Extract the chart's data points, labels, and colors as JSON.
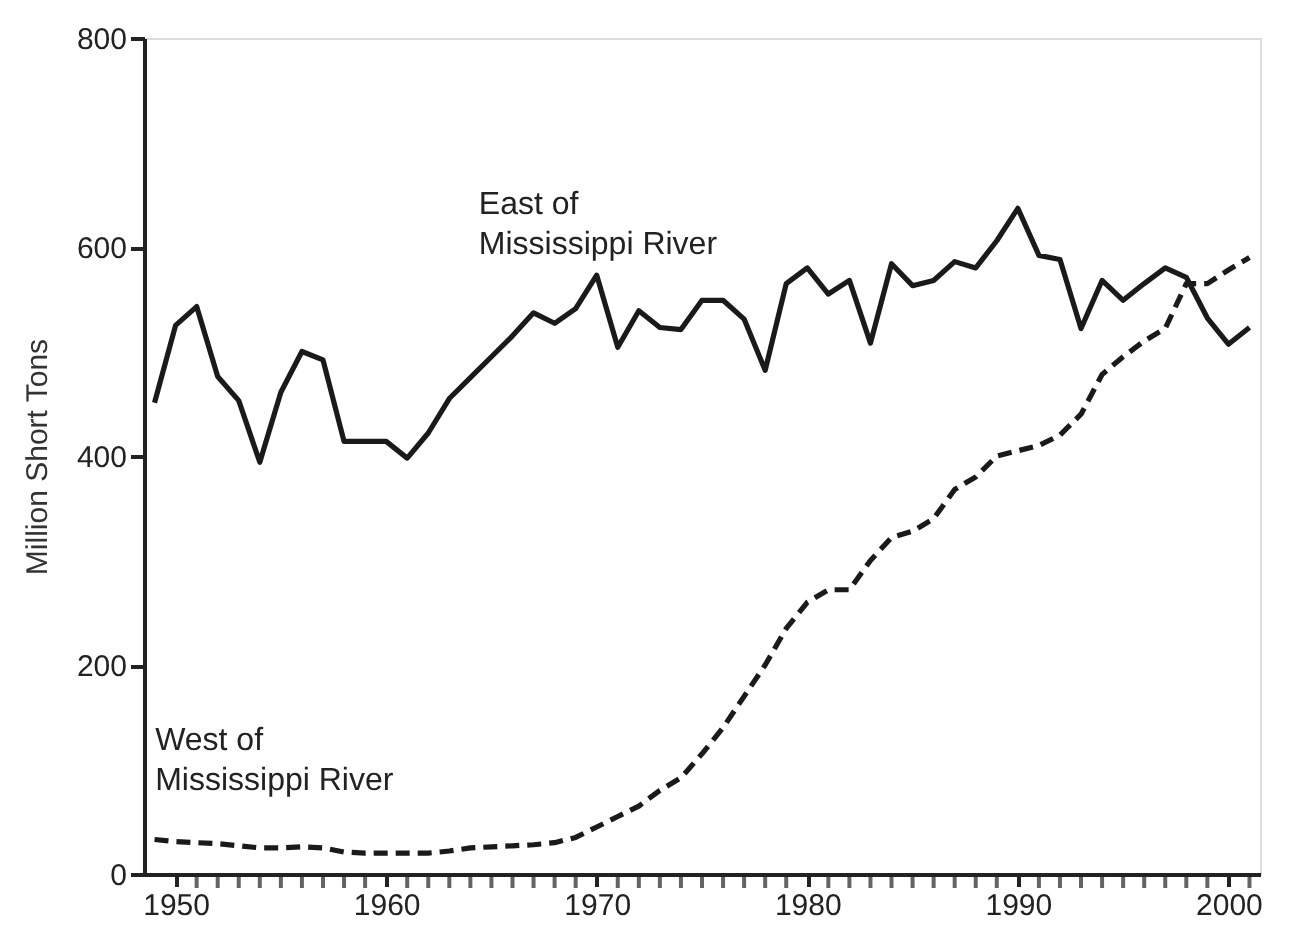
{
  "chart_data": {
    "type": "line",
    "ylabel": "Million Short Tons",
    "x": [
      1949,
      1950,
      1951,
      1952,
      1953,
      1954,
      1955,
      1956,
      1957,
      1958,
      1959,
      1960,
      1961,
      1962,
      1963,
      1964,
      1965,
      1966,
      1967,
      1968,
      1969,
      1970,
      1971,
      1972,
      1973,
      1974,
      1975,
      1976,
      1977,
      1978,
      1979,
      1980,
      1981,
      1982,
      1983,
      1984,
      1985,
      1986,
      1987,
      1988,
      1989,
      1990,
      1991,
      1992,
      1993,
      1994,
      1995,
      1996,
      1997,
      1998,
      1999,
      2000,
      2001
    ],
    "series": [
      {
        "color": "#1a1a1a",
        "line_style": "solid",
        "values": [
          451,
          525,
          543,
          476,
          453,
          394,
          461,
          500,
          492,
          414,
          414,
          414,
          398,
          422,
          455,
          475,
          495,
          515,
          537,
          527,
          541,
          573,
          504,
          539,
          523,
          521,
          549,
          549,
          531,
          482,
          565,
          580,
          555,
          568,
          508,
          584,
          563,
          568,
          586,
          580,
          606,
          637,
          592,
          588,
          522,
          568,
          549,
          565,
          580,
          571,
          532,
          507,
          523
        ]
      },
      {
        "color": "#1a1a1a",
        "line_style": "dashed",
        "values": [
          33,
          31,
          30,
          29,
          27,
          25,
          25,
          26,
          25,
          21,
          20,
          20,
          20,
          20,
          22,
          25,
          26,
          27,
          28,
          30,
          35,
          45,
          55,
          65,
          80,
          92,
          115,
          140,
          170,
          200,
          235,
          260,
          272,
          272,
          300,
          322,
          328,
          340,
          368,
          380,
          400,
          405,
          410,
          420,
          440,
          478,
          495,
          510,
          522,
          565,
          565,
          578,
          590
        ]
      }
    ],
    "xlim": [
      1948.5,
      2001.5
    ],
    "xticks": [
      1950,
      {
        "value": 1951,
        "label": null
      },
      {
        "value": 1952,
        "label": null
      },
      {
        "value": 1953,
        "label": null
      },
      {
        "value": 1954,
        "label": null
      },
      {
        "value": 1955,
        "label": null
      },
      {
        "value": 1956,
        "label": null
      },
      {
        "value": 1957,
        "label": null
      },
      {
        "value": 1958,
        "label": null
      },
      {
        "value": 1959,
        "label": null
      },
      1960,
      {
        "value": 1961,
        "label": null
      },
      {
        "value": 1962,
        "label": null
      },
      {
        "value": 1963,
        "label": null
      },
      {
        "value": 1964,
        "label": null
      },
      {
        "value": 1965,
        "label": null
      },
      {
        "value": 1966,
        "label": null
      },
      {
        "value": 1967,
        "label": null
      },
      {
        "value": 1968,
        "label": null
      },
      {
        "value": 1969,
        "label": null
      },
      1970,
      {
        "value": 1971,
        "label": null
      },
      {
        "value": 1972,
        "label": null
      },
      {
        "value": 1973,
        "label": null
      },
      {
        "value": 1974,
        "label": null
      },
      {
        "value": 1975,
        "label": null
      },
      {
        "value": 1976,
        "label": null
      },
      {
        "value": 1977,
        "label": null
      },
      {
        "value": 1978,
        "label": null
      },
      {
        "value": 1979,
        "label": null
      },
      1980,
      {
        "value": 1981,
        "label": null
      },
      {
        "value": 1982,
        "label": null
      },
      {
        "value": 1983,
        "label": null
      },
      {
        "value": 1984,
        "label": null
      },
      {
        "value": 1985,
        "label": null
      },
      {
        "value": 1986,
        "label": null
      },
      {
        "value": 1987,
        "label": null
      },
      {
        "value": 1988,
        "label": null
      },
      {
        "value": 1989,
        "label": null
      },
      1990,
      {
        "value": 1991,
        "label": null
      },
      {
        "value": 1992,
        "label": null
      },
      {
        "value": 1993,
        "label": null
      },
      {
        "value": 1994,
        "label": null
      },
      {
        "value": 1995,
        "label": null
      },
      {
        "value": 1996,
        "label": null
      },
      {
        "value": 1997,
        "label": null
      },
      {
        "value": 1998,
        "label": null
      },
      {
        "value": 1999,
        "label": null
      },
      2000,
      {
        "value": 2001,
        "label": null
      }
    ],
    "ylim": [
      0,
      800
    ],
    "yticks": [
      0,
      200,
      400,
      600,
      800
    ],
    "grid": false,
    "marker": "none",
    "annotations": [
      "East of\nMississippi River",
      "West of\nMississippi River"
    ]
  }
}
